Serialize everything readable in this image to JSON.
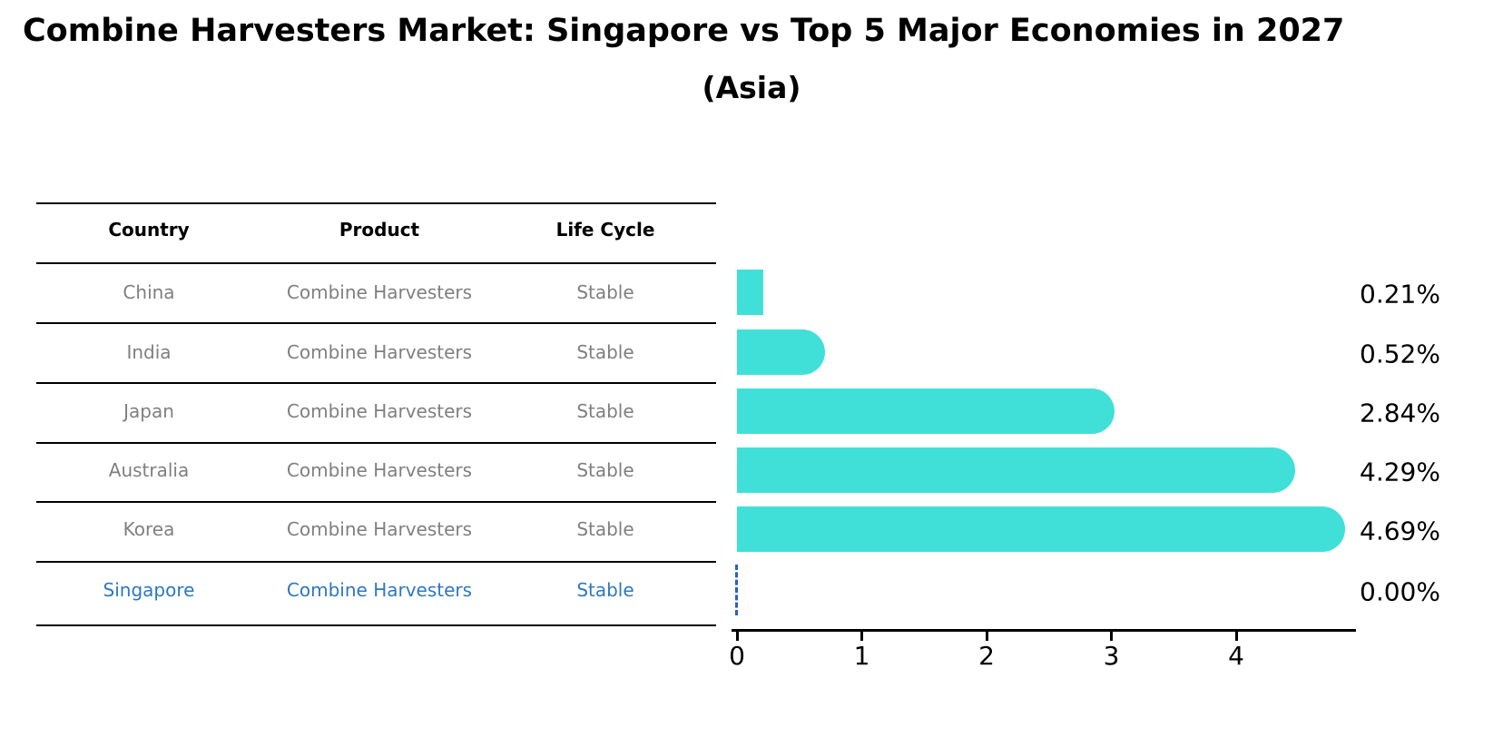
{
  "title": "Combine Harvesters Market: Singapore vs Top 5 Major Economies in 2027",
  "subtitle": "(Asia)",
  "table": {
    "headers": [
      "Country",
      "Product",
      "Life Cycle"
    ],
    "rows": [
      {
        "country": "China",
        "product": "Combine Harvesters",
        "life_cycle": "Stable",
        "highlighted": false
      },
      {
        "country": "India",
        "product": "Combine Harvesters",
        "life_cycle": "Stable",
        "highlighted": false
      },
      {
        "country": "Japan",
        "product": "Combine Harvesters",
        "life_cycle": "Stable",
        "highlighted": false
      },
      {
        "country": "Australia",
        "product": "Combine Harvesters",
        "life_cycle": "Stable",
        "highlighted": false
      },
      {
        "country": "Korea",
        "product": "Combine Harvesters",
        "life_cycle": "Stable",
        "highlighted": false
      },
      {
        "country": "Singapore",
        "product": "Combine Harvesters",
        "life_cycle": "Stable",
        "highlighted": true
      }
    ]
  },
  "chart_data": {
    "type": "bar",
    "orientation": "horizontal",
    "title": "Combine Harvesters Market: Singapore vs Top 5 Major Economies in 2027",
    "subtitle": "(Asia)",
    "categories": [
      "China",
      "India",
      "Japan",
      "Australia",
      "Korea",
      "Singapore"
    ],
    "values": [
      0.21,
      0.52,
      2.84,
      4.29,
      4.69,
      0.0
    ],
    "value_labels": [
      "0.21%",
      "0.52%",
      "2.84%",
      "4.29%",
      "4.69%",
      "0.00%"
    ],
    "x_ticks": [
      "0",
      "1",
      "2",
      "3",
      "4"
    ],
    "xlim": [
      0,
      4.95
    ],
    "grid": false,
    "legend": null,
    "bar_color": "#40E0D8",
    "highlight_color": "#2E78BE",
    "zero_marker_color": "#2B5FC7",
    "zero_marker_style": "dashed",
    "axis_color": "#000000",
    "value_text_color": "#000000",
    "row_text_color": "#7F7F7F"
  }
}
